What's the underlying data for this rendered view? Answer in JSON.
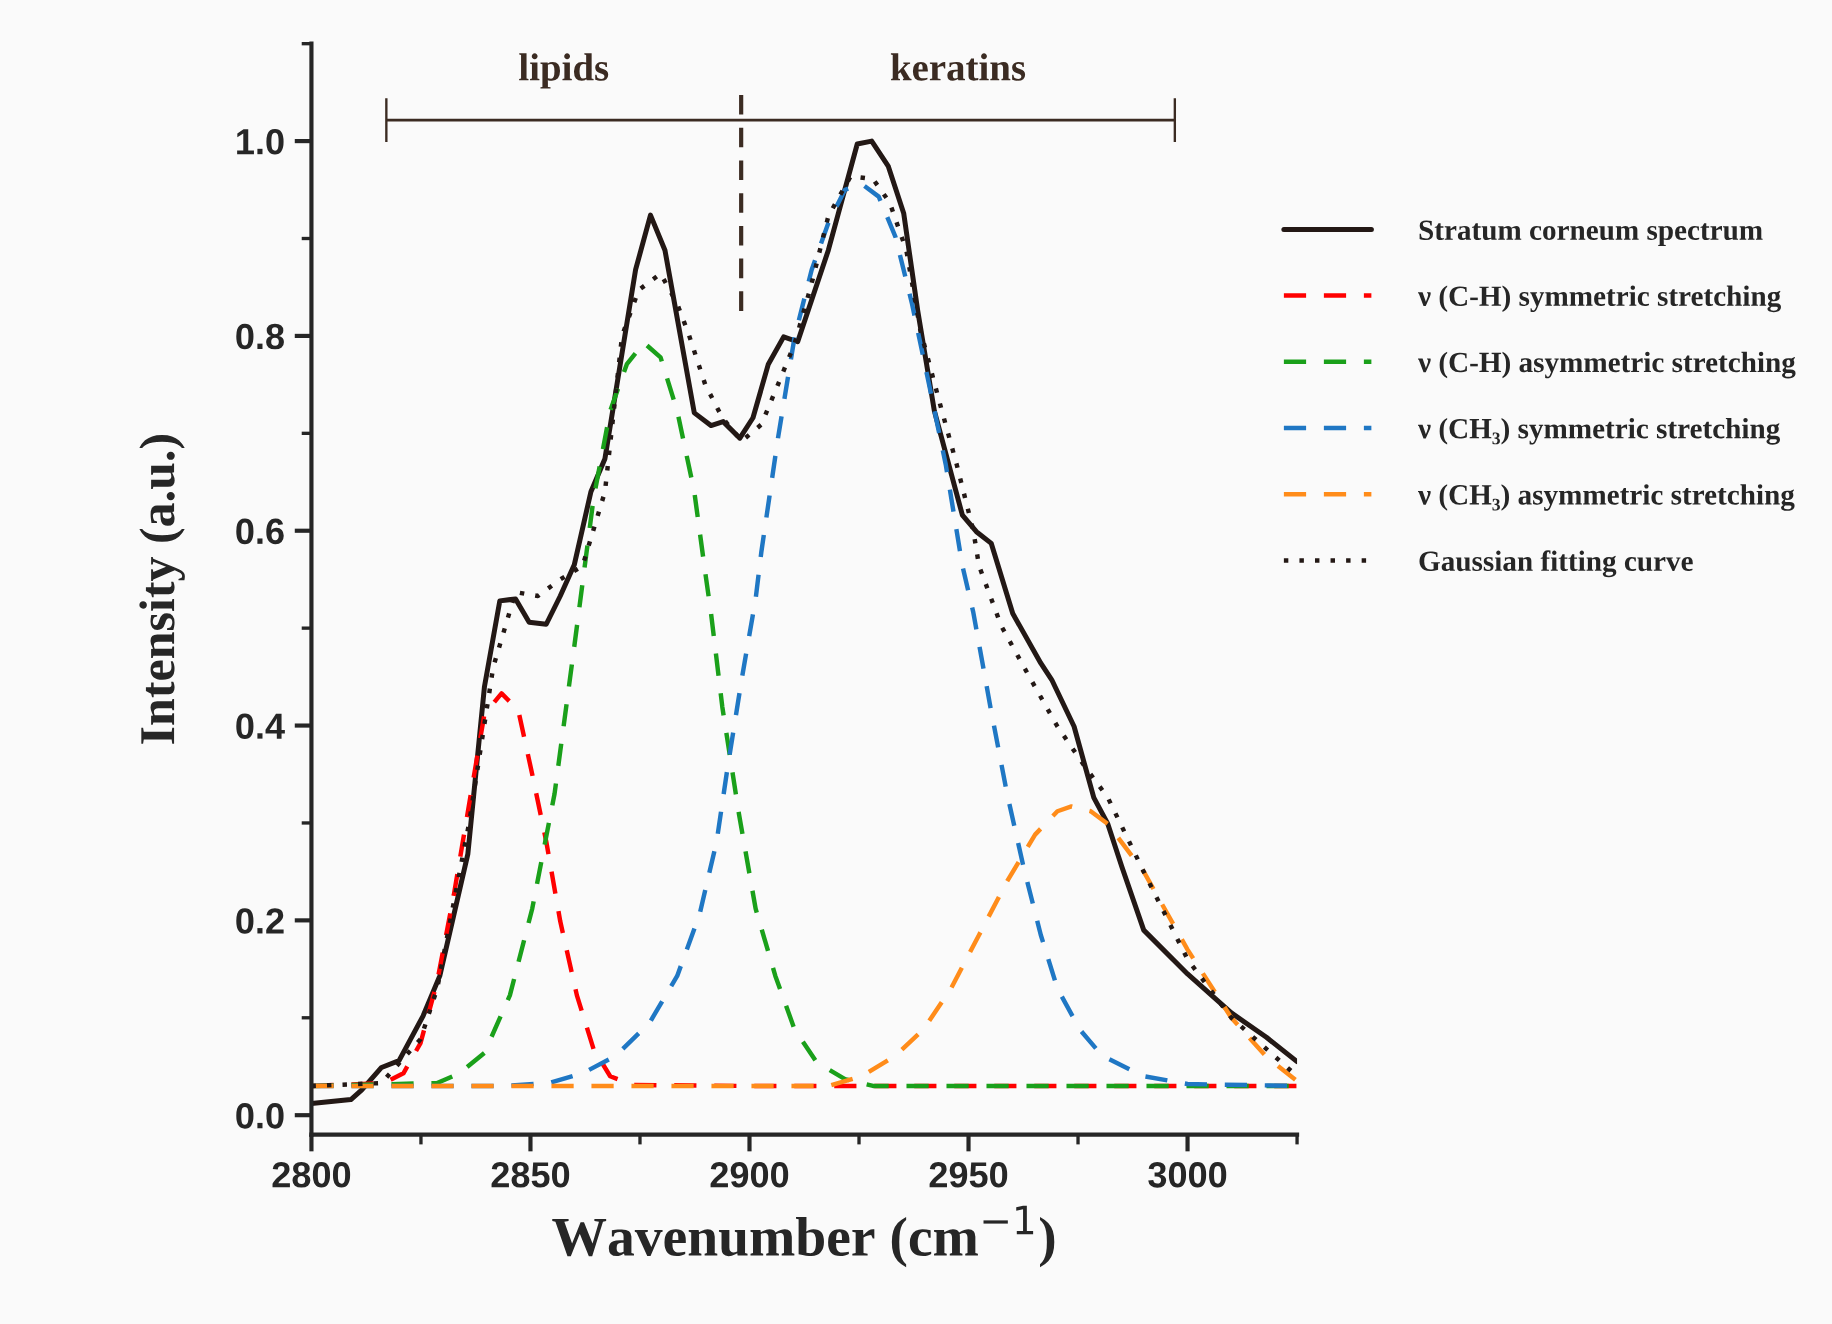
{
  "chart_data": {
    "type": "line",
    "xlabel": "Wavenumber (cm$^{−1}$)",
    "ylabel": "Intensity (a.u.)",
    "xlim": [
      2800,
      3025
    ],
    "ylim": [
      -0.02,
      1.1
    ],
    "xticks": [
      2800,
      2850,
      2900,
      2950,
      3000
    ],
    "yticks": [
      {
        "value": 0,
        "label": "0.0"
      },
      0.2,
      0.4,
      0.6,
      0.8,
      {
        "value": 1,
        "label": "1.0"
      }
    ],
    "grid": false,
    "legend": "right",
    "marker": "none",
    "annotations": [
      "lipids",
      "keratins"
    ],
    "series": [
      {
        "name": "Stratum corneum spectrum",
        "color": "#231815",
        "line_style": "solid",
        "x": [
          2800,
          2809,
          2811.5,
          2816,
          2820,
          2825.5,
          2829.3,
          2835.7,
          2839.5,
          2843,
          2846.6,
          2849.7,
          2853.6,
          2856.8,
          2860,
          2863.8,
          2867,
          2874,
          2877.4,
          2880.7,
          2887.4,
          2891.2,
          2894,
          2897.8,
          2900.8,
          2904.3,
          2907.8,
          2911,
          2918,
          2924.6,
          2927.9,
          2931.7,
          2935.2,
          2938.4,
          2942.2,
          2948.6,
          2951.8,
          2955.2,
          2960.1,
          2966.5,
          2969,
          2974.1,
          2978.6,
          2981.8,
          2985,
          2990,
          3000,
          3010,
          3018,
          3025
        ],
        "values": [
          0.012,
          0.016,
          0.026,
          0.049,
          0.056,
          0.102,
          0.143,
          0.268,
          0.44,
          0.528,
          0.53,
          0.506,
          0.504,
          0.533,
          0.565,
          0.64,
          0.674,
          0.868,
          0.924,
          0.888,
          0.721,
          0.708,
          0.712,
          0.695,
          0.716,
          0.771,
          0.799,
          0.794,
          0.888,
          0.997,
          1.0,
          0.974,
          0.926,
          0.826,
          0.723,
          0.616,
          0.599,
          0.587,
          0.515,
          0.464,
          0.447,
          0.399,
          0.326,
          0.299,
          0.255,
          0.19,
          0.145,
          0.105,
          0.08,
          0.055
        ]
      },
      {
        "name": "ν (C-H) symmetric stretching",
        "color": "#ff0000",
        "line_style": "dashed",
        "x": [
          2800,
          2816.6,
          2821,
          2824.9,
          2828.7,
          2832.5,
          2836.4,
          2839.5,
          2843.4,
          2847.2,
          2850.4,
          2853.6,
          2856.8,
          2860.6,
          2864.4,
          2868.2,
          2873.3,
          2900,
          3025
        ],
        "values": [
          0.03,
          0.033,
          0.043,
          0.074,
          0.137,
          0.226,
          0.33,
          0.412,
          0.433,
          0.416,
          0.35,
          0.281,
          0.199,
          0.123,
          0.068,
          0.04,
          0.031,
          0.03,
          0.03
        ]
      },
      {
        "name": "ν (C-H) asymmetric stretching",
        "color": "#1aa01a",
        "line_style": "dashed",
        "x": [
          2800,
          2828.7,
          2833.8,
          2839.5,
          2845.3,
          2850.4,
          2855.5,
          2860,
          2864.4,
          2868.2,
          2872,
          2875.9,
          2879.7,
          2883.5,
          2887.4,
          2889.9,
          2891.2,
          2893.8,
          2897.6,
          2901.4,
          2905.9,
          2910.3,
          2915.4,
          2921.8,
          2928.2,
          3025
        ],
        "values": [
          0.03,
          0.033,
          0.043,
          0.064,
          0.123,
          0.212,
          0.33,
          0.481,
          0.633,
          0.723,
          0.771,
          0.793,
          0.778,
          0.723,
          0.64,
          0.557,
          0.516,
          0.419,
          0.309,
          0.212,
          0.143,
          0.088,
          0.054,
          0.037,
          0.03,
          0.03
        ]
      },
      {
        "name": "ν (CH₃) symmetric stretching",
        "color": "#1f77c4",
        "line_style": "dashed",
        "x": [
          2800,
          2844,
          2854.2,
          2861.9,
          2869.5,
          2877.2,
          2883.5,
          2888.6,
          2892.5,
          2895,
          2898.2,
          2901.4,
          2902.7,
          2906.5,
          2910.3,
          2914.2,
          2918,
          2921.8,
          2925.6,
          2929.5,
          2933.3,
          2937.1,
          2941,
          2944.8,
          2948.6,
          2951.1,
          2955,
          2958.8,
          2962.6,
          2966.5,
          2970.3,
          2975.4,
          2980.5,
          2990,
          3000,
          3025
        ],
        "values": [
          0.03,
          0.03,
          0.033,
          0.043,
          0.061,
          0.095,
          0.143,
          0.206,
          0.281,
          0.357,
          0.447,
          0.53,
          0.578,
          0.695,
          0.799,
          0.868,
          0.916,
          0.95,
          0.956,
          0.943,
          0.902,
          0.833,
          0.75,
          0.668,
          0.564,
          0.516,
          0.419,
          0.33,
          0.254,
          0.185,
          0.13,
          0.088,
          0.061,
          0.04,
          0.032,
          0.03
        ]
      },
      {
        "name": "ν (CH₃) asymmetric stretching",
        "color": "#ff8c1a",
        "line_style": "dashed",
        "x": [
          2800,
          2918,
          2925.6,
          2933.3,
          2939.7,
          2946,
          2952.4,
          2958.8,
          2965.2,
          2970.3,
          2973.5,
          2977.9,
          2981.8,
          2990,
          3000,
          3010,
          3018,
          3025
        ],
        "values": [
          0.03,
          0.03,
          0.04,
          0.061,
          0.088,
          0.13,
          0.185,
          0.24,
          0.288,
          0.312,
          0.317,
          0.312,
          0.299,
          0.25,
          0.17,
          0.1,
          0.06,
          0.035
        ]
      },
      {
        "name": "Gaussian fitting curve",
        "color": "#231815",
        "line_style": "dotted",
        "x": [
          2800,
          2816,
          2824.9,
          2828.7,
          2836,
          2841.5,
          2846.6,
          2851.7,
          2856.8,
          2861.9,
          2867,
          2870.9,
          2874.7,
          2879.7,
          2883.5,
          2886.1,
          2889.9,
          2893.8,
          2898.2,
          2902.7,
          2906.5,
          2910.3,
          2914.2,
          2918,
          2923.1,
          2928.2,
          2932,
          2935.8,
          2939,
          2943.5,
          2947.3,
          2951.1,
          2952.4,
          2957.5,
          2963.9,
          2970.3,
          2976.7,
          2981.8,
          2990,
          3000,
          3010,
          3025
        ],
        "values": [
          0.03,
          0.033,
          0.078,
          0.13,
          0.3,
          0.46,
          0.537,
          0.533,
          0.55,
          0.564,
          0.64,
          0.8,
          0.847,
          0.864,
          0.833,
          0.802,
          0.75,
          0.716,
          0.692,
          0.709,
          0.75,
          0.792,
          0.854,
          0.923,
          0.964,
          0.961,
          0.937,
          0.888,
          0.806,
          0.73,
          0.668,
          0.6,
          0.564,
          0.502,
          0.45,
          0.399,
          0.357,
          0.326,
          0.25,
          0.16,
          0.1,
          0.04
        ]
      }
    ]
  }
}
